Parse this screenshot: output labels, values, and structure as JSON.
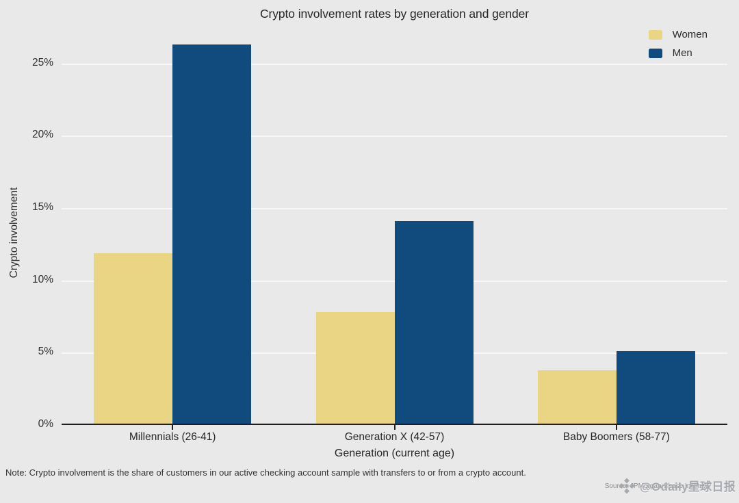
{
  "chart_data": {
    "type": "bar",
    "title": "Crypto involvement rates by generation and gender",
    "categories": [
      "Millennials (26-41)",
      "Generation X (42-57)",
      "Baby Boomers (58-77)"
    ],
    "series": [
      {
        "name": "Women",
        "color": "#ead584",
        "values": [
          11.8,
          7.7,
          3.7
        ]
      },
      {
        "name": "Men",
        "color": "#114b7d",
        "values": [
          26.2,
          14.0,
          5.0
        ]
      }
    ],
    "xlabel": "Generation (current age)",
    "ylabel": "Crypto involvement",
    "yticks": [
      0,
      5,
      10,
      15,
      20,
      25
    ],
    "ytick_suffix": "%",
    "ylim": [
      0,
      27.5
    ],
    "grid": true,
    "legend_position": "top-right",
    "background_color": "#e9e9e9",
    "axis_color": "#1f1f1f"
  },
  "footer": {
    "note": "Note: Crypto involvement is the share of customers in our active checking account sample with transfers to or from a crypto account.",
    "source": "Source: JPMorgan Chase Institute",
    "watermark": "@Odaily星球日报",
    "watermark_icon": "diamond-logo-icon"
  }
}
